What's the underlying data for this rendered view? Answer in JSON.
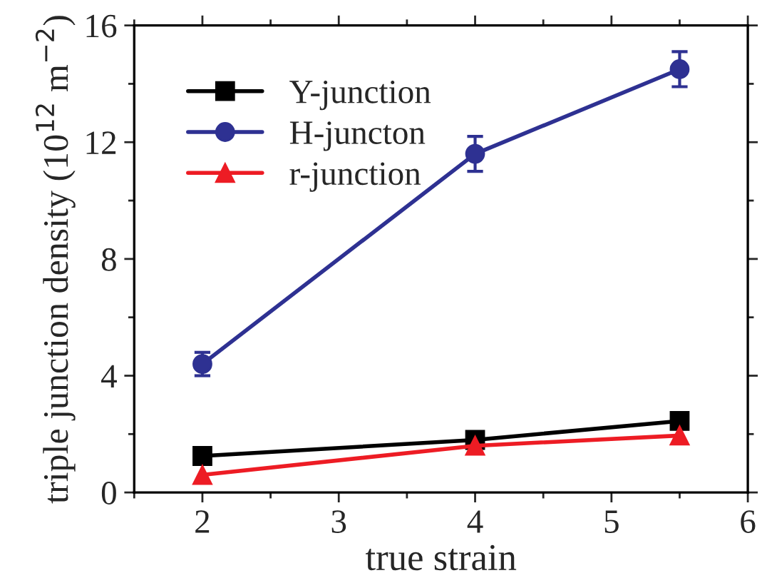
{
  "chart_data": {
    "type": "line",
    "xlabel": "true strain",
    "ylabel": "triple junction density (10$^{12}$ m$^{−2}$)",
    "x": [
      2,
      4,
      5.5
    ],
    "series": [
      {
        "name": "Y-junction",
        "color": "#000000",
        "marker": "square",
        "values": [
          1.25,
          1.8,
          2.45
        ],
        "errors": [
          0.15,
          0.2,
          0.15
        ]
      },
      {
        "name": "H-juncton",
        "color": "#2e3192",
        "marker": "circle",
        "values": [
          4.4,
          11.6,
          14.5
        ],
        "errors": [
          0.4,
          0.6,
          0.6
        ]
      },
      {
        "name": "r-junction",
        "color": "#ed1c24",
        "marker": "triangle",
        "values": [
          0.6,
          1.6,
          1.95
        ]
      }
    ],
    "xlim": [
      1.5,
      6
    ],
    "xticks": [
      2,
      3,
      4,
      5,
      6
    ],
    "ylim": [
      0,
      16
    ],
    "yticks": [
      0,
      4,
      8,
      12,
      16
    ],
    "legend": "top left",
    "grid": false,
    "line_style": "solid"
  }
}
